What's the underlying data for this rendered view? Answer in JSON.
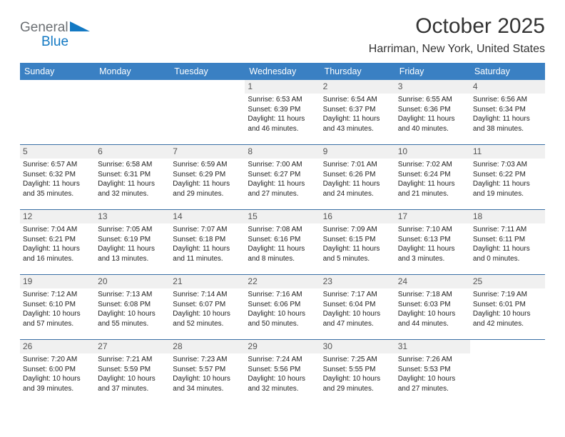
{
  "brand": {
    "line1": "General",
    "line2": "Blue",
    "text_color_dark": "#6b6f73",
    "text_color_blue": "#1379c3",
    "triangle_color": "#1379c3"
  },
  "title": "October 2025",
  "location": "Harriman, New York, United States",
  "colors": {
    "header_bg": "#3a80c3",
    "header_text": "#ffffff",
    "rule": "#3a6fa5",
    "daynum_bg": "#f0f0f0",
    "daynum_text": "#555555",
    "body_text": "#222222",
    "page_bg": "#ffffff"
  },
  "weekdays": [
    "Sunday",
    "Monday",
    "Tuesday",
    "Wednesday",
    "Thursday",
    "Friday",
    "Saturday"
  ],
  "weeks": [
    [
      {
        "n": "",
        "sr": "",
        "ss": "",
        "dl1": "",
        "dl2": ""
      },
      {
        "n": "",
        "sr": "",
        "ss": "",
        "dl1": "",
        "dl2": ""
      },
      {
        "n": "",
        "sr": "",
        "ss": "",
        "dl1": "",
        "dl2": ""
      },
      {
        "n": "1",
        "sr": "Sunrise: 6:53 AM",
        "ss": "Sunset: 6:39 PM",
        "dl1": "Daylight: 11 hours",
        "dl2": "and 46 minutes."
      },
      {
        "n": "2",
        "sr": "Sunrise: 6:54 AM",
        "ss": "Sunset: 6:37 PM",
        "dl1": "Daylight: 11 hours",
        "dl2": "and 43 minutes."
      },
      {
        "n": "3",
        "sr": "Sunrise: 6:55 AM",
        "ss": "Sunset: 6:36 PM",
        "dl1": "Daylight: 11 hours",
        "dl2": "and 40 minutes."
      },
      {
        "n": "4",
        "sr": "Sunrise: 6:56 AM",
        "ss": "Sunset: 6:34 PM",
        "dl1": "Daylight: 11 hours",
        "dl2": "and 38 minutes."
      }
    ],
    [
      {
        "n": "5",
        "sr": "Sunrise: 6:57 AM",
        "ss": "Sunset: 6:32 PM",
        "dl1": "Daylight: 11 hours",
        "dl2": "and 35 minutes."
      },
      {
        "n": "6",
        "sr": "Sunrise: 6:58 AM",
        "ss": "Sunset: 6:31 PM",
        "dl1": "Daylight: 11 hours",
        "dl2": "and 32 minutes."
      },
      {
        "n": "7",
        "sr": "Sunrise: 6:59 AM",
        "ss": "Sunset: 6:29 PM",
        "dl1": "Daylight: 11 hours",
        "dl2": "and 29 minutes."
      },
      {
        "n": "8",
        "sr": "Sunrise: 7:00 AM",
        "ss": "Sunset: 6:27 PM",
        "dl1": "Daylight: 11 hours",
        "dl2": "and 27 minutes."
      },
      {
        "n": "9",
        "sr": "Sunrise: 7:01 AM",
        "ss": "Sunset: 6:26 PM",
        "dl1": "Daylight: 11 hours",
        "dl2": "and 24 minutes."
      },
      {
        "n": "10",
        "sr": "Sunrise: 7:02 AM",
        "ss": "Sunset: 6:24 PM",
        "dl1": "Daylight: 11 hours",
        "dl2": "and 21 minutes."
      },
      {
        "n": "11",
        "sr": "Sunrise: 7:03 AM",
        "ss": "Sunset: 6:22 PM",
        "dl1": "Daylight: 11 hours",
        "dl2": "and 19 minutes."
      }
    ],
    [
      {
        "n": "12",
        "sr": "Sunrise: 7:04 AM",
        "ss": "Sunset: 6:21 PM",
        "dl1": "Daylight: 11 hours",
        "dl2": "and 16 minutes."
      },
      {
        "n": "13",
        "sr": "Sunrise: 7:05 AM",
        "ss": "Sunset: 6:19 PM",
        "dl1": "Daylight: 11 hours",
        "dl2": "and 13 minutes."
      },
      {
        "n": "14",
        "sr": "Sunrise: 7:07 AM",
        "ss": "Sunset: 6:18 PM",
        "dl1": "Daylight: 11 hours",
        "dl2": "and 11 minutes."
      },
      {
        "n": "15",
        "sr": "Sunrise: 7:08 AM",
        "ss": "Sunset: 6:16 PM",
        "dl1": "Daylight: 11 hours",
        "dl2": "and 8 minutes."
      },
      {
        "n": "16",
        "sr": "Sunrise: 7:09 AM",
        "ss": "Sunset: 6:15 PM",
        "dl1": "Daylight: 11 hours",
        "dl2": "and 5 minutes."
      },
      {
        "n": "17",
        "sr": "Sunrise: 7:10 AM",
        "ss": "Sunset: 6:13 PM",
        "dl1": "Daylight: 11 hours",
        "dl2": "and 3 minutes."
      },
      {
        "n": "18",
        "sr": "Sunrise: 7:11 AM",
        "ss": "Sunset: 6:11 PM",
        "dl1": "Daylight: 11 hours",
        "dl2": "and 0 minutes."
      }
    ],
    [
      {
        "n": "19",
        "sr": "Sunrise: 7:12 AM",
        "ss": "Sunset: 6:10 PM",
        "dl1": "Daylight: 10 hours",
        "dl2": "and 57 minutes."
      },
      {
        "n": "20",
        "sr": "Sunrise: 7:13 AM",
        "ss": "Sunset: 6:08 PM",
        "dl1": "Daylight: 10 hours",
        "dl2": "and 55 minutes."
      },
      {
        "n": "21",
        "sr": "Sunrise: 7:14 AM",
        "ss": "Sunset: 6:07 PM",
        "dl1": "Daylight: 10 hours",
        "dl2": "and 52 minutes."
      },
      {
        "n": "22",
        "sr": "Sunrise: 7:16 AM",
        "ss": "Sunset: 6:06 PM",
        "dl1": "Daylight: 10 hours",
        "dl2": "and 50 minutes."
      },
      {
        "n": "23",
        "sr": "Sunrise: 7:17 AM",
        "ss": "Sunset: 6:04 PM",
        "dl1": "Daylight: 10 hours",
        "dl2": "and 47 minutes."
      },
      {
        "n": "24",
        "sr": "Sunrise: 7:18 AM",
        "ss": "Sunset: 6:03 PM",
        "dl1": "Daylight: 10 hours",
        "dl2": "and 44 minutes."
      },
      {
        "n": "25",
        "sr": "Sunrise: 7:19 AM",
        "ss": "Sunset: 6:01 PM",
        "dl1": "Daylight: 10 hours",
        "dl2": "and 42 minutes."
      }
    ],
    [
      {
        "n": "26",
        "sr": "Sunrise: 7:20 AM",
        "ss": "Sunset: 6:00 PM",
        "dl1": "Daylight: 10 hours",
        "dl2": "and 39 minutes."
      },
      {
        "n": "27",
        "sr": "Sunrise: 7:21 AM",
        "ss": "Sunset: 5:59 PM",
        "dl1": "Daylight: 10 hours",
        "dl2": "and 37 minutes."
      },
      {
        "n": "28",
        "sr": "Sunrise: 7:23 AM",
        "ss": "Sunset: 5:57 PM",
        "dl1": "Daylight: 10 hours",
        "dl2": "and 34 minutes."
      },
      {
        "n": "29",
        "sr": "Sunrise: 7:24 AM",
        "ss": "Sunset: 5:56 PM",
        "dl1": "Daylight: 10 hours",
        "dl2": "and 32 minutes."
      },
      {
        "n": "30",
        "sr": "Sunrise: 7:25 AM",
        "ss": "Sunset: 5:55 PM",
        "dl1": "Daylight: 10 hours",
        "dl2": "and 29 minutes."
      },
      {
        "n": "31",
        "sr": "Sunrise: 7:26 AM",
        "ss": "Sunset: 5:53 PM",
        "dl1": "Daylight: 10 hours",
        "dl2": "and 27 minutes."
      },
      {
        "n": "",
        "sr": "",
        "ss": "",
        "dl1": "",
        "dl2": ""
      }
    ]
  ]
}
